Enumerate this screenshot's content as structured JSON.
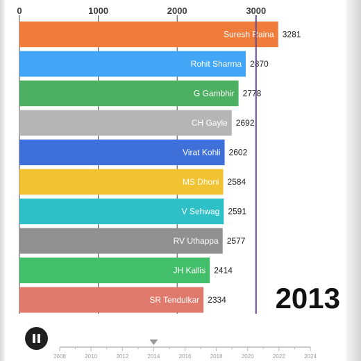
{
  "chart_data": {
    "type": "bar",
    "orientation": "horizontal",
    "title": "",
    "xlabel": "",
    "ylabel": "",
    "xlim": [
      0,
      3300
    ],
    "x_ticks": [
      0,
      1000,
      2000,
      3000
    ],
    "x_tick_labels": [
      "0",
      "1000",
      "2000",
      "3000"
    ],
    "grid": true,
    "categories": [
      "Suresh Raina",
      "Rohit Sharma",
      "G Gambhir",
      "CH Gayle",
      "Virat Kohli",
      "MS Dhoni",
      "V Sehwag",
      "RV Uthappa",
      "JH Kallis",
      "SR Tendulkar"
    ],
    "values": [
      3281,
      2870,
      2778,
      2692,
      2602,
      2584,
      2591,
      2577,
      2414,
      2334
    ],
    "value_labels": [
      "3281",
      "2870",
      "2778",
      "2692",
      "2602",
      "2584",
      "2591",
      "2577",
      "2414",
      "2334"
    ],
    "bar_colors": [
      "#f07c3c",
      "#42a5f5",
      "#4caf61",
      "#b5b5b5",
      "#3f6fd8",
      "#f1c232",
      "#2fbfc6",
      "#909090",
      "#43be6a",
      "#e07a6c"
    ],
    "marker_line_value": 3000,
    "year": "2013"
  },
  "timeline": {
    "labels": [
      "2008",
      "2010",
      "2012",
      "2014",
      "2016",
      "2018",
      "2020",
      "2022",
      "2024"
    ],
    "start": 2008,
    "end": 2024,
    "current": 2014.0
  },
  "controls": {
    "pause_icon": "pause-icon"
  }
}
